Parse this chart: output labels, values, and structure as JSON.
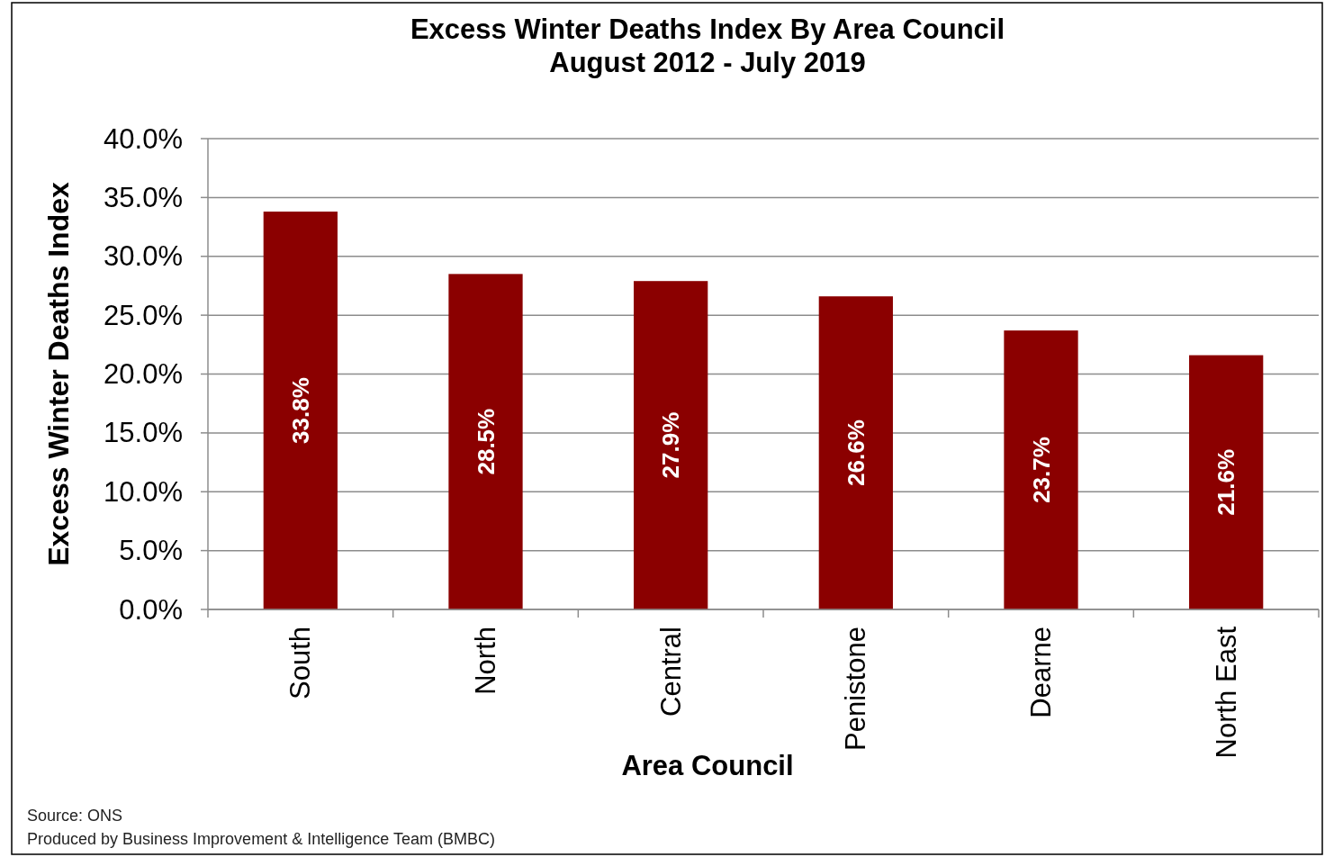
{
  "chart_data": {
    "type": "bar",
    "title": "Excess Winter Deaths Index By Area Council",
    "subtitle": "August 2012 - July 2019",
    "xlabel": "Area Council",
    "ylabel": "Excess Winter Deaths Index",
    "categories": [
      "South",
      "North",
      "Central",
      "Penistone",
      "Dearne",
      "North East"
    ],
    "values": [
      33.8,
      28.5,
      27.9,
      26.6,
      23.7,
      21.6
    ],
    "value_labels": [
      "33.8%",
      "28.5%",
      "27.9%",
      "26.6%",
      "23.7%",
      "21.6%"
    ],
    "color": "#8b0000",
    "ylim": [
      0,
      40
    ],
    "yticks": [
      {
        "value": 0,
        "label": "0.0%"
      },
      {
        "value": 5,
        "label": "5.0%"
      },
      {
        "value": 10,
        "label": "10.0%"
      },
      {
        "value": 15,
        "label": "15.0%"
      },
      {
        "value": 20,
        "label": "20.0%"
      },
      {
        "value": 25,
        "label": "25.0%"
      },
      {
        "value": 30,
        "label": "30.0%"
      },
      {
        "value": 35,
        "label": "35.0%"
      },
      {
        "value": 40,
        "label": "40.0%"
      }
    ],
    "grid": "y",
    "annotations": [
      "Source: ONS",
      "Produced by Business Improvement & Intelligence Team (BMBC)"
    ]
  }
}
